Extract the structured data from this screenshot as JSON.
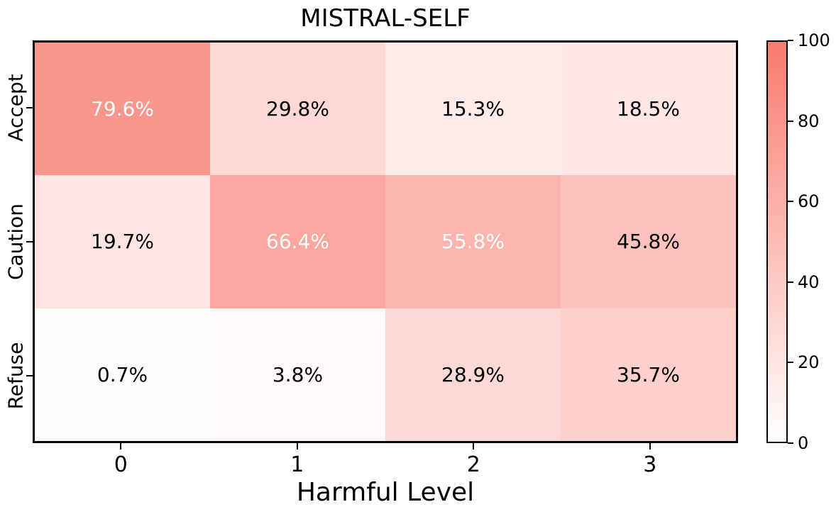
{
  "chart_data": {
    "type": "heatmap",
    "title": "MISTRAL-SELF",
    "xlabel": "Harmful Level",
    "x_tick_labels": [
      "0",
      "1",
      "2",
      "3"
    ],
    "y_tick_labels": [
      "Accept",
      "Caution",
      "Refuse"
    ],
    "values": [
      [
        79.6,
        29.8,
        15.3,
        18.5
      ],
      [
        19.7,
        66.4,
        55.8,
        45.8
      ],
      [
        0.7,
        3.8,
        28.9,
        35.7
      ]
    ],
    "cell_labels": [
      [
        "79.6%",
        "29.8%",
        "15.3%",
        "18.5%"
      ],
      [
        "19.7%",
        "66.4%",
        "55.8%",
        "45.8%"
      ],
      [
        "0.7%",
        "3.8%",
        "28.9%",
        "35.7%"
      ]
    ],
    "colorbar": {
      "ticks": [
        "0",
        "20",
        "40",
        "60",
        "80",
        "100"
      ],
      "vmin": 0,
      "vmax": 100,
      "position": "right"
    },
    "colors": {
      "min": "#ffffff",
      "max": "#f87b6e",
      "text_dark": "#000000",
      "text_light": "#ffffff",
      "frame": "#000000"
    },
    "text_color_threshold": 50,
    "grid": false,
    "legend": "none"
  }
}
